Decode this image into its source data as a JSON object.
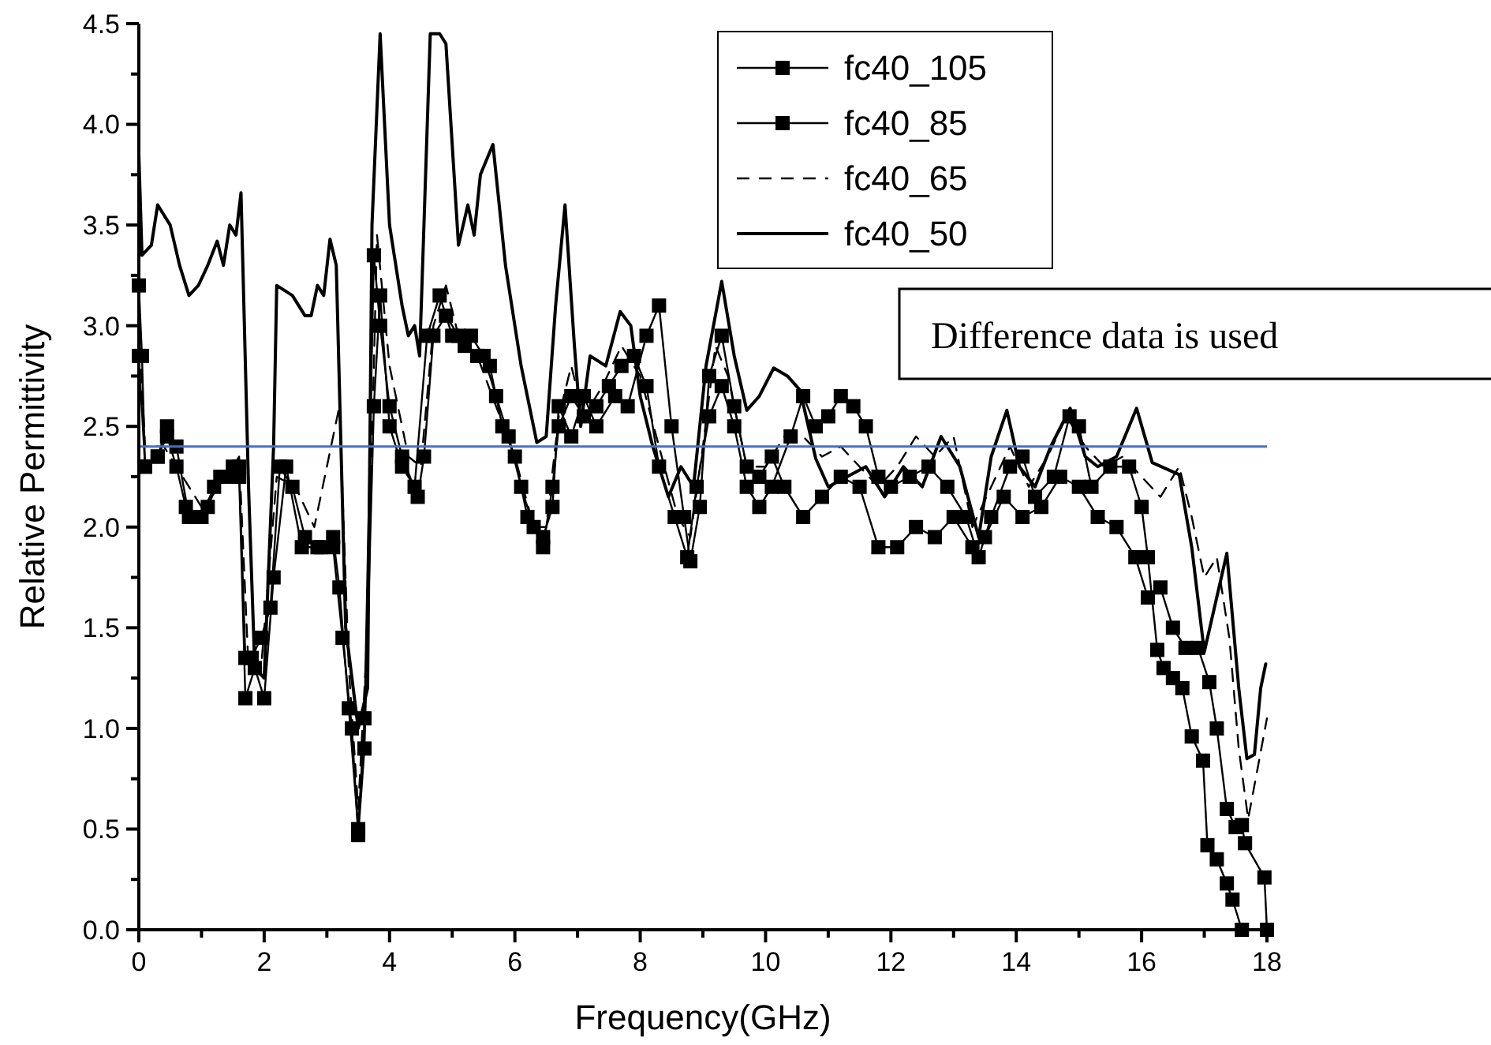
{
  "chart_data": {
    "type": "line",
    "xlabel": "Frequency(GHz)",
    "ylabel": "Relative Permittivity",
    "xlim": [
      0,
      18
    ],
    "ylim": [
      0,
      4.5
    ],
    "xticks": [
      0,
      {
        "value": 1,
        "label": null
      },
      2,
      {
        "value": 3,
        "label": null
      },
      4,
      {
        "value": 5,
        "label": null
      },
      6,
      {
        "value": 7,
        "label": null
      },
      8,
      {
        "value": 9,
        "label": null
      },
      10,
      {
        "value": 11,
        "label": null
      },
      12,
      {
        "value": 13,
        "label": null
      },
      14,
      {
        "value": 15,
        "label": null
      },
      16,
      {
        "value": 17,
        "label": null
      },
      18
    ],
    "yticks": [
      {
        "value": 0,
        "label": "0.0"
      },
      {
        "value": 0.25,
        "label": null
      },
      {
        "value": 0.5,
        "label": "0.5"
      },
      {
        "value": 0.75,
        "label": null
      },
      {
        "value": 1,
        "label": "1.0"
      },
      {
        "value": 1.25,
        "label": null
      },
      {
        "value": 1.5,
        "label": "1.5"
      },
      {
        "value": 1.75,
        "label": null
      },
      {
        "value": 2,
        "label": "2.0"
      },
      {
        "value": 2.25,
        "label": null
      },
      {
        "value": 2.5,
        "label": "2.5"
      },
      {
        "value": 2.75,
        "label": null
      },
      {
        "value": 3,
        "label": "3.0"
      },
      {
        "value": 3.25,
        "label": null
      },
      {
        "value": 3.5,
        "label": "3.5"
      },
      {
        "value": 3.75,
        "label": null
      },
      {
        "value": 4,
        "label": "4.0"
      },
      {
        "value": 4.25,
        "label": null
      },
      {
        "value": 4.5,
        "label": "4.5"
      }
    ],
    "grid": false,
    "legend": "top",
    "annotations": [
      "Difference data is used"
    ],
    "ref_lines": [
      {
        "axis": "y",
        "value": 2.4,
        "color": "#4472c4"
      }
    ],
    "series": [
      {
        "name": "fc40_105",
        "color": "#000000",
        "marker": "square",
        "line_style": "solid",
        "x": [
          0,
          0.05,
          0.1,
          0.3,
          0.45,
          0.6,
          0.75,
          0.9,
          1.1,
          1.3,
          1.5,
          1.6,
          1.7,
          1.8,
          1.95,
          2.1,
          2.25,
          2.45,
          2.65,
          2.9,
          3.1,
          3.2,
          3.35,
          3.5,
          3.6,
          3.75,
          3.85,
          4.0,
          4.2,
          4.45,
          4.55,
          4.7,
          4.9,
          5.1,
          5.3,
          5.5,
          5.7,
          5.9,
          6.1,
          6.3,
          6.45,
          6.6,
          6.7,
          6.9,
          7.1,
          7.3,
          7.5,
          7.7,
          7.9,
          8.1,
          8.3,
          8.55,
          8.75,
          8.9,
          9.1,
          9.3,
          9.5,
          9.7,
          9.9,
          10.1,
          10.4,
          10.6,
          10.8,
          11.0,
          11.2,
          11.4,
          11.6,
          11.8,
          12.0,
          12.3,
          12.6,
          12.9,
          13.2,
          13.4,
          13.6,
          13.9,
          14.1,
          14.3,
          14.6,
          14.85,
          15.0,
          15.2,
          15.5,
          15.8,
          16.0,
          16.1,
          16.25,
          16.35,
          16.5,
          16.65,
          16.8,
          16.98,
          17.05,
          17.2,
          17.36,
          17.45,
          17.6
        ],
        "values": [
          3.2,
          2.85,
          2.3,
          2.35,
          2.45,
          2.3,
          2.1,
          2.05,
          2.1,
          2.25,
          2.3,
          2.3,
          1.35,
          1.35,
          1.45,
          1.6,
          2.3,
          2.2,
          1.95,
          1.9,
          1.95,
          1.7,
          1.1,
          0.5,
          1.05,
          3.35,
          3.0,
          2.6,
          2.35,
          2.15,
          2.35,
          2.95,
          3.05,
          2.95,
          2.95,
          2.85,
          2.65,
          2.45,
          2.2,
          2.0,
          1.9,
          2.2,
          2.5,
          2.65,
          2.55,
          2.6,
          2.7,
          2.8,
          2.85,
          2.7,
          2.3,
          2.05,
          1.85,
          2.2,
          2.55,
          2.7,
          2.5,
          2.2,
          2.1,
          2.2,
          2.45,
          2.65,
          2.5,
          2.55,
          2.65,
          2.6,
          2.5,
          2.25,
          2.2,
          2.25,
          2.3,
          2.2,
          2.05,
          1.85,
          2.05,
          2.3,
          2.35,
          2.15,
          2.25,
          2.55,
          2.5,
          2.2,
          2.3,
          2.3,
          2.1,
          1.85,
          1.39,
          1.3,
          1.25,
          1.2,
          0.96,
          0.84,
          0.42,
          0.35,
          0.23,
          0.15,
          0
        ]
      },
      {
        "name": "fc40_85",
        "color": "#000000",
        "marker": "square",
        "line_style": "solid",
        "x": [
          0,
          0.1,
          0.3,
          0.45,
          0.6,
          0.8,
          1.0,
          1.2,
          1.4,
          1.6,
          1.7,
          1.85,
          2.0,
          2.15,
          2.35,
          2.6,
          2.85,
          3.1,
          3.25,
          3.4,
          3.5,
          3.6,
          3.75,
          3.85,
          4.0,
          4.2,
          4.4,
          4.6,
          4.8,
          5.0,
          5.2,
          5.4,
          5.6,
          5.8,
          6.0,
          6.2,
          6.45,
          6.6,
          6.7,
          6.9,
          7.1,
          7.3,
          7.6,
          7.8,
          8.1,
          8.3,
          8.5,
          8.7,
          8.8,
          8.95,
          9.1,
          9.3,
          9.5,
          9.7,
          9.9,
          10.1,
          10.3,
          10.6,
          10.9,
          11.2,
          11.5,
          11.8,
          12.1,
          12.4,
          12.7,
          13.0,
          13.3,
          13.5,
          13.8,
          14.1,
          14.4,
          14.7,
          15.0,
          15.3,
          15.6,
          15.9,
          16.1,
          16.3,
          16.5,
          16.7,
          16.9,
          17.08,
          17.2,
          17.36,
          17.5,
          17.6,
          17.65,
          17.96,
          18.0
        ],
        "values": [
          2.85,
          2.3,
          2.35,
          2.5,
          2.4,
          2.05,
          2.05,
          2.2,
          2.25,
          2.25,
          1.15,
          1.3,
          1.15,
          1.75,
          2.3,
          1.9,
          1.9,
          1.9,
          1.45,
          1.0,
          0.47,
          0.9,
          2.6,
          3.15,
          2.5,
          2.3,
          2.2,
          2.95,
          3.15,
          2.95,
          2.9,
          2.85,
          2.8,
          2.5,
          2.35,
          2.05,
          1.95,
          2.1,
          2.6,
          2.45,
          2.65,
          2.5,
          2.65,
          2.6,
          2.95,
          3.1,
          2.5,
          2.05,
          1.83,
          2.1,
          2.75,
          2.95,
          2.6,
          2.3,
          2.25,
          2.35,
          2.2,
          2.05,
          2.15,
          2.25,
          2.2,
          1.9,
          1.9,
          2.0,
          1.95,
          2.05,
          1.9,
          1.95,
          2.15,
          2.05,
          2.1,
          2.25,
          2.2,
          2.05,
          2.0,
          1.85,
          1.65,
          1.7,
          1.5,
          1.4,
          1.4,
          1.23,
          1.0,
          0.6,
          0.51,
          0.52,
          0.43,
          0.26,
          0
        ]
      },
      {
        "name": "fc40_65",
        "color": "#000000",
        "marker": "none",
        "line_style": "dashed",
        "x": [
          0,
          0.1,
          0.4,
          0.7,
          1.0,
          1.3,
          1.6,
          1.75,
          1.95,
          2.2,
          2.5,
          2.8,
          3.0,
          3.2,
          3.35,
          3.5,
          3.65,
          3.8,
          4.0,
          4.3,
          4.5,
          4.7,
          4.9,
          5.1,
          5.4,
          5.7,
          6.0,
          6.3,
          6.5,
          6.7,
          6.9,
          7.1,
          7.4,
          7.7,
          8.0,
          8.3,
          8.6,
          8.8,
          9.0,
          9.2,
          9.4,
          9.7,
          10.0,
          10.3,
          10.6,
          10.9,
          11.2,
          11.5,
          11.8,
          12.1,
          12.4,
          12.7,
          13.0,
          13.3,
          13.6,
          13.9,
          14.2,
          14.5,
          14.8,
          15.1,
          15.4,
          15.7,
          16.0,
          16.3,
          16.6,
          16.8,
          17.0,
          17.2,
          17.4,
          17.55,
          17.7,
          17.85,
          18.0
        ],
        "values": [
          3.0,
          2.4,
          2.4,
          2.25,
          2.1,
          2.2,
          2.35,
          1.3,
          1.3,
          2.25,
          2.2,
          2.0,
          2.3,
          2.6,
          1.3,
          0.6,
          1.5,
          3.45,
          2.8,
          2.35,
          2.3,
          3.0,
          3.2,
          2.95,
          2.85,
          2.6,
          2.35,
          2.0,
          2.0,
          2.55,
          2.8,
          2.55,
          2.7,
          2.9,
          2.75,
          2.4,
          2.05,
          1.95,
          2.4,
          2.9,
          2.75,
          2.3,
          2.3,
          2.45,
          2.45,
          2.35,
          2.4,
          2.3,
          2.2,
          2.3,
          2.45,
          2.35,
          2.45,
          2.0,
          2.2,
          2.4,
          2.2,
          2.35,
          2.55,
          2.4,
          2.3,
          2.35,
          2.25,
          2.15,
          2.3,
          2.05,
          1.75,
          1.85,
          1.45,
          0.9,
          0.55,
          0.8,
          1.05
        ]
      },
      {
        "name": "fc40_50",
        "color": "#000000",
        "marker": "none",
        "line_style": "solid",
        "x": [
          0,
          0.05,
          0.2,
          0.3,
          0.5,
          0.65,
          0.8,
          0.95,
          1.1,
          1.25,
          1.35,
          1.45,
          1.55,
          1.63,
          1.75,
          1.85,
          2.0,
          2.15,
          2.2,
          2.45,
          2.65,
          2.75,
          2.85,
          2.95,
          3.05,
          3.15,
          3.3,
          3.5,
          3.65,
          3.72,
          3.85,
          4.0,
          4.2,
          4.3,
          4.4,
          4.48,
          4.65,
          4.8,
          4.9,
          5.1,
          5.25,
          5.35,
          5.45,
          5.65,
          5.85,
          6.1,
          6.35,
          6.5,
          6.65,
          6.8,
          6.95,
          7.05,
          7.2,
          7.45,
          7.68,
          7.85,
          8.0,
          8.2,
          8.45,
          8.65,
          8.85,
          9.05,
          9.3,
          9.5,
          9.7,
          9.9,
          10.13,
          10.35,
          10.55,
          10.8,
          11.0,
          11.3,
          11.6,
          11.9,
          12.2,
          12.5,
          12.8,
          13.1,
          13.4,
          13.6,
          13.85,
          14.05,
          14.3,
          14.55,
          14.86,
          15.1,
          15.3,
          15.6,
          15.92,
          16.17,
          16.6,
          16.8,
          17.0,
          17.36,
          17.55,
          17.68,
          17.8,
          17.9,
          17.98
        ],
        "values": [
          3.85,
          3.35,
          3.4,
          3.6,
          3.5,
          3.3,
          3.15,
          3.2,
          3.3,
          3.42,
          3.3,
          3.5,
          3.45,
          3.66,
          2.2,
          1.3,
          1.25,
          2.4,
          3.2,
          3.15,
          3.05,
          3.05,
          3.2,
          3.15,
          3.43,
          3.3,
          1.5,
          1.0,
          1.2,
          3.5,
          4.45,
          3.5,
          3.1,
          2.95,
          3.0,
          2.85,
          4.45,
          4.45,
          4.4,
          3.4,
          3.6,
          3.45,
          3.75,
          3.9,
          3.3,
          2.8,
          2.42,
          2.45,
          3.1,
          3.6,
          2.9,
          2.5,
          2.85,
          2.8,
          3.07,
          3.0,
          2.65,
          2.4,
          2.15,
          2.3,
          2.2,
          2.8,
          3.22,
          2.85,
          2.58,
          2.65,
          2.79,
          2.75,
          2.68,
          2.34,
          2.2,
          2.25,
          2.3,
          2.15,
          2.3,
          2.2,
          2.45,
          2.3,
          1.95,
          2.35,
          2.58,
          2.3,
          2.2,
          2.4,
          2.59,
          2.35,
          2.3,
          2.35,
          2.59,
          2.32,
          2.26,
          1.9,
          1.38,
          1.87,
          1.2,
          0.85,
          0.87,
          1.2,
          1.32
        ]
      }
    ]
  }
}
